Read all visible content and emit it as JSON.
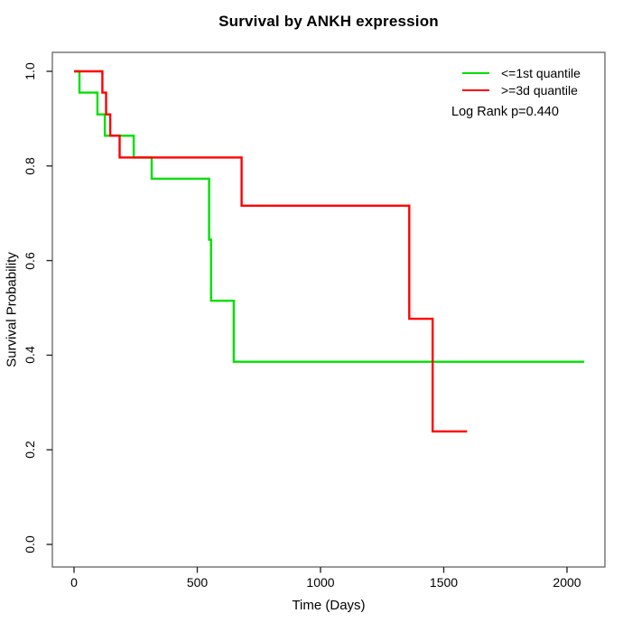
{
  "chart_data": {
    "type": "line",
    "subtype": "kaplan-meier-step",
    "title": "Survival by ANKH expression",
    "xlabel": "Time (Days)",
    "ylabel": "Survival Probability",
    "xlim": [
      0,
      2150
    ],
    "ylim": [
      0,
      1
    ],
    "x_ticks": [
      0,
      500,
      1000,
      1500,
      2000
    ],
    "y_tick_labels": [
      "0.0",
      "0.2",
      "0.4",
      "0.6",
      "0.8",
      "1.0"
    ],
    "grid": "off",
    "legend_position": "top-right",
    "annotation": "Log Rank p=0.440",
    "series": [
      {
        "name": "<=1st quantile",
        "color": "#00e000",
        "points": [
          [
            0,
            1.0
          ],
          [
            22,
            0.955
          ],
          [
            95,
            0.909
          ],
          [
            125,
            0.864
          ],
          [
            242,
            0.818
          ],
          [
            315,
            0.773
          ],
          [
            548,
            0.644
          ],
          [
            556,
            0.515
          ],
          [
            648,
            0.386
          ]
        ],
        "end_time": 2070
      },
      {
        "name": ">=3d quantile",
        "color": "#ff0000",
        "points": [
          [
            0,
            1.0
          ],
          [
            115,
            0.955
          ],
          [
            130,
            0.909
          ],
          [
            147,
            0.864
          ],
          [
            185,
            0.818
          ],
          [
            680,
            0.716
          ],
          [
            1360,
            0.477
          ],
          [
            1455,
            0.239
          ]
        ],
        "end_time": 1595
      }
    ]
  }
}
